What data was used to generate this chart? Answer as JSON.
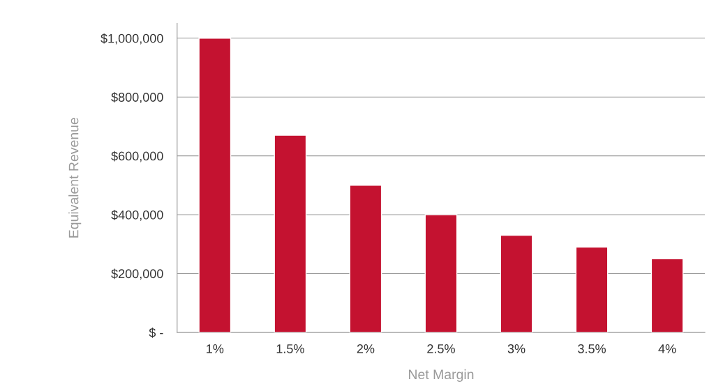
{
  "chart_data": {
    "type": "bar",
    "xlabel": "Net Margin",
    "ylabel": "Equivalent Revenue",
    "categories": [
      "1%",
      "1.5%",
      "2%",
      "2.5%",
      "3%",
      "3.5%",
      "4%"
    ],
    "values": [
      1000000,
      670000,
      500000,
      400000,
      330000,
      290000,
      250000
    ],
    "color": "#c41230",
    "ylim": [
      0,
      1050000
    ],
    "yticks": [
      {
        "value": 0,
        "label": "$ -"
      },
      {
        "value": 200000,
        "label": "$200,000"
      },
      {
        "value": 400000,
        "label": "$400,000"
      },
      {
        "value": 600000,
        "label": "$600,000"
      },
      {
        "value": 800000,
        "label": "$800,000"
      },
      {
        "value": 1000000,
        "label": "$1,000,000"
      }
    ],
    "grid": "y",
    "legend": false
  }
}
